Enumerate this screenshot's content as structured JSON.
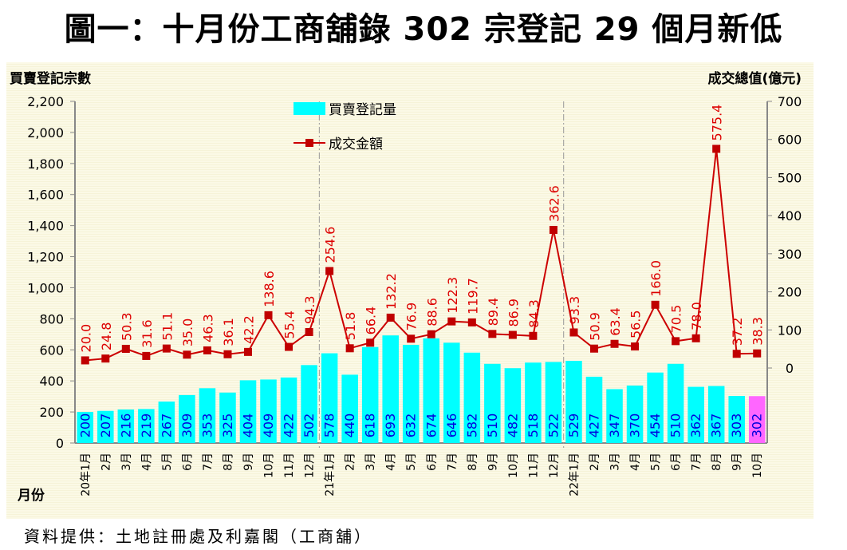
{
  "title": "圖一：十月份工商舖錄 302 宗登記  29 個月新低",
  "source": "資料提供：土地註冊處及利嘉閣（工商舖）",
  "chart_data": {
    "type": "bar+line",
    "title": "圖一：十月份工商舖錄 302 宗登記  29 個月新低",
    "xlabel": "月份",
    "ylabel_left": "買賣登記宗數",
    "ylabel_right": "成交總值(億元)",
    "ylim_left": [
      0,
      2200
    ],
    "yticks_left": [
      "0",
      "200",
      "400",
      "600",
      "800",
      "1,000",
      "1,200",
      "1,400",
      "1,600",
      "1,800",
      "2,000",
      "2,200"
    ],
    "ylim_right_ticks": [
      "0",
      "100",
      "200",
      "300",
      "400",
      "500",
      "600",
      "700"
    ],
    "legend_position": "top-left",
    "categories": [
      "20年1月",
      "2月",
      "3月",
      "4月",
      "5月",
      "6月",
      "7月",
      "8月",
      "9月",
      "10月",
      "11月",
      "12月",
      "21年1月",
      "2月",
      "3月",
      "4月",
      "5月",
      "6月",
      "7月",
      "8月",
      "9月",
      "10月",
      "11月",
      "12月",
      "22年1月",
      "2月",
      "3月",
      "4月",
      "5月",
      "6月",
      "7月",
      "8月",
      "9月",
      "10月"
    ],
    "series": [
      {
        "name": "買賣登記量",
        "type": "bar",
        "axis": "left",
        "color": "#00ffff",
        "highlight_color": "#ff66ff",
        "values": [
          200,
          207,
          216,
          219,
          267,
          309,
          353,
          325,
          404,
          409,
          422,
          502,
          578,
          440,
          618,
          693,
          632,
          674,
          646,
          582,
          510,
          482,
          518,
          522,
          529,
          427,
          347,
          370,
          454,
          510,
          362,
          367,
          303,
          302
        ]
      },
      {
        "name": "成交金額",
        "type": "line",
        "axis": "right",
        "color": "#cc0000",
        "values": [
          20.0,
          24.8,
          50.3,
          31.6,
          51.1,
          35.0,
          46.3,
          36.1,
          42.2,
          138.6,
          55.4,
          94.3,
          254.6,
          51.8,
          66.4,
          132.2,
          76.9,
          88.6,
          122.3,
          119.7,
          89.4,
          86.9,
          84.3,
          362.6,
          93.3,
          50.9,
          63.4,
          56.5,
          166.0,
          70.5,
          78.0,
          575.4,
          37.2,
          38.3
        ]
      }
    ],
    "year_dividers_after_index": [
      11,
      23
    ]
  }
}
